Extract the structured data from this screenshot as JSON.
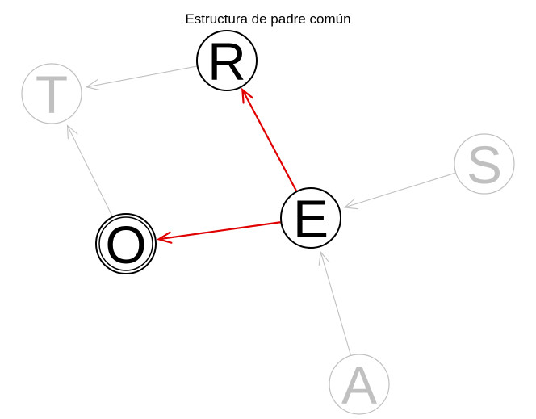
{
  "diagram": {
    "title": "Estructura de padre común",
    "colors": {
      "highlight_node": "#000000",
      "muted_node": "#c0c0c0",
      "highlight_edge": "#e00000",
      "muted_edge": "#c0c0c0",
      "background": "#ffffff"
    },
    "nodes": [
      {
        "id": "R",
        "label": "R",
        "highlighted": true,
        "double_ring": false
      },
      {
        "id": "T",
        "label": "T",
        "highlighted": false,
        "double_ring": false
      },
      {
        "id": "S",
        "label": "S",
        "highlighted": false,
        "double_ring": false
      },
      {
        "id": "E",
        "label": "E",
        "highlighted": true,
        "double_ring": false
      },
      {
        "id": "O",
        "label": "O",
        "highlighted": true,
        "double_ring": true
      },
      {
        "id": "A",
        "label": "A",
        "highlighted": false,
        "double_ring": false
      }
    ],
    "edges": [
      {
        "from": "E",
        "to": "R",
        "highlighted": true
      },
      {
        "from": "E",
        "to": "O",
        "highlighted": true
      },
      {
        "from": "R",
        "to": "T",
        "highlighted": false
      },
      {
        "from": "O",
        "to": "T",
        "highlighted": false
      },
      {
        "from": "S",
        "to": "E",
        "highlighted": false
      },
      {
        "from": "A",
        "to": "E",
        "highlighted": false
      }
    ]
  }
}
